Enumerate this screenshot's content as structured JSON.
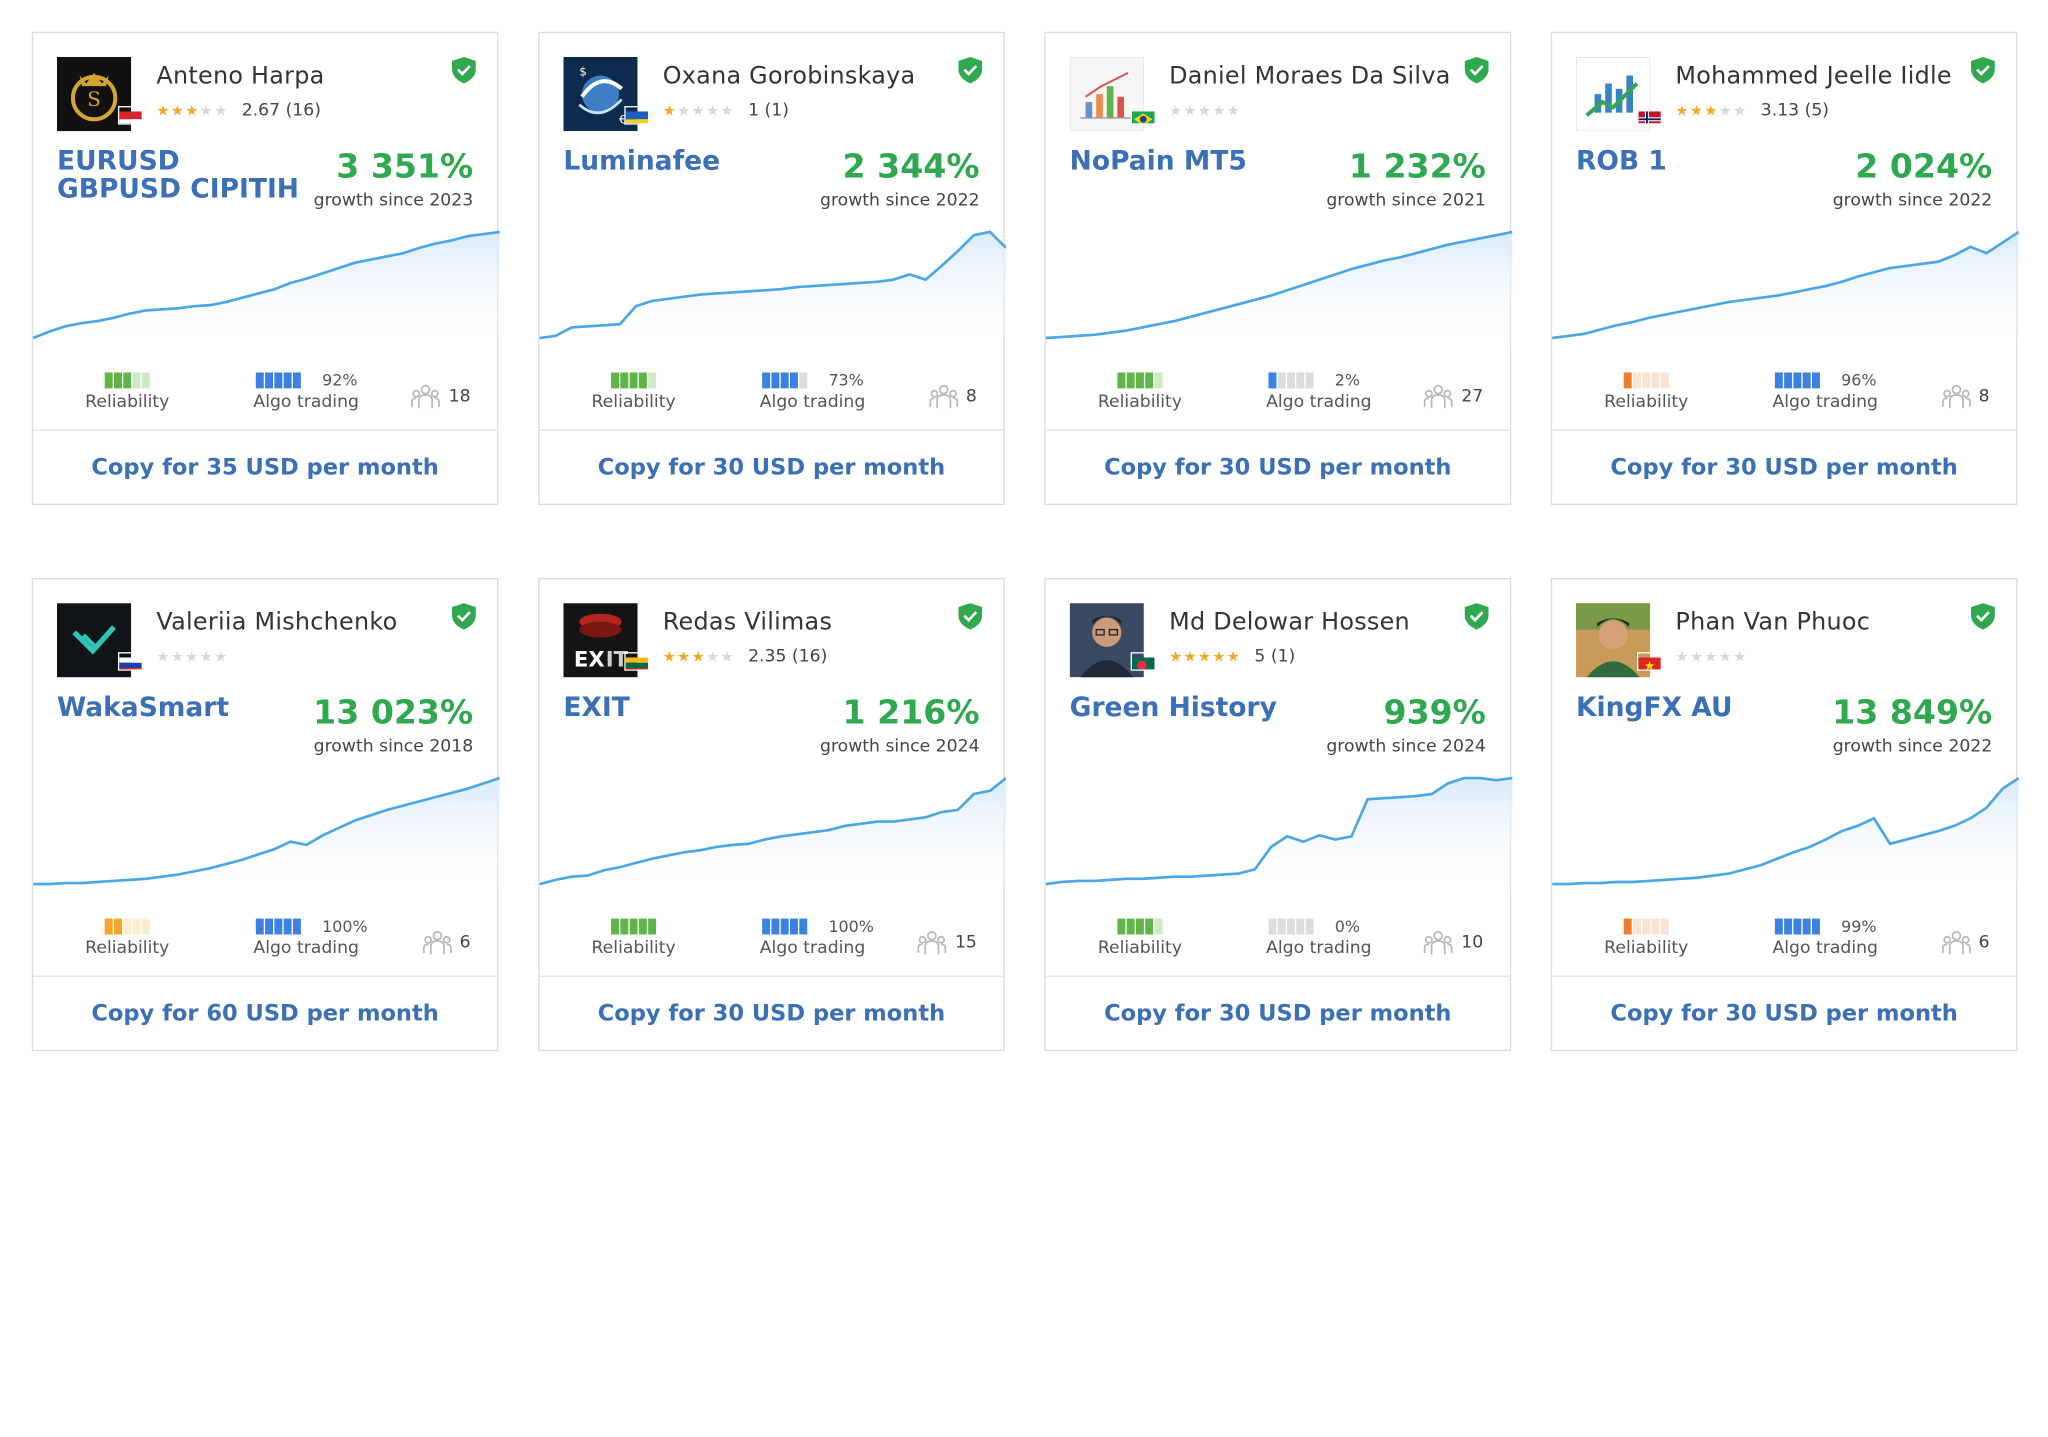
{
  "cards": [
    {
      "author": "Anteno Harpa",
      "stars": 2.5,
      "rating": "2.67 (16)",
      "strategy": "EURUSD GBPUSD CIPITIH",
      "growth": "3 351%",
      "since": "growth since 2023",
      "reliability": 3,
      "relColor": "green",
      "algo": "92%",
      "algoFill": 5,
      "subs": "18",
      "copy": "Copy for 35 USD per month",
      "flag": "id",
      "avatar": "gold-logo",
      "curve": [
        0.0,
        0.06,
        0.11,
        0.14,
        0.16,
        0.19,
        0.23,
        0.26,
        0.27,
        0.28,
        0.3,
        0.31,
        0.34,
        0.38,
        0.42,
        0.46,
        0.52,
        0.56,
        0.61,
        0.66,
        0.71,
        0.74,
        0.77,
        0.8,
        0.85,
        0.89,
        0.92,
        0.96,
        0.98,
        1.0
      ]
    },
    {
      "author": "Oxana Gorobinskaya",
      "stars": 1,
      "rating": "1 (1)",
      "strategy": "Luminafee",
      "growth": "2 344%",
      "since": "growth since 2022",
      "reliability": 4,
      "relColor": "green",
      "algo": "73%",
      "algoFill": 4,
      "subs": "8",
      "copy": "Copy for 30 USD per month",
      "flag": "ua",
      "avatar": "forex-globe",
      "curve": [
        0.0,
        0.02,
        0.1,
        0.11,
        0.12,
        0.13,
        0.3,
        0.35,
        0.37,
        0.39,
        0.41,
        0.42,
        0.43,
        0.44,
        0.45,
        0.46,
        0.48,
        0.49,
        0.5,
        0.51,
        0.52,
        0.53,
        0.55,
        0.6,
        0.55,
        0.68,
        0.82,
        0.97,
        1.0,
        0.85
      ]
    },
    {
      "author": "Daniel Moraes Da Silva",
      "stars": 0,
      "rating": "",
      "strategy": "NoPain MT5",
      "growth": "1 232%",
      "since": "growth since 2021",
      "reliability": 4,
      "relColor": "green",
      "algo": "2%",
      "algoFill": 1,
      "subs": "27",
      "copy": "Copy for 30 USD per month",
      "flag": "br",
      "avatar": "bar-icon",
      "curve": [
        0.0,
        0.01,
        0.02,
        0.03,
        0.05,
        0.07,
        0.1,
        0.13,
        0.16,
        0.2,
        0.24,
        0.28,
        0.32,
        0.36,
        0.4,
        0.45,
        0.5,
        0.55,
        0.6,
        0.65,
        0.69,
        0.73,
        0.76,
        0.8,
        0.84,
        0.88,
        0.91,
        0.94,
        0.97,
        1.0
      ]
    },
    {
      "author": "Mohammed Jeelle Iidle",
      "stars": 3,
      "rating": "3.13 (5)",
      "strategy": "ROB 1",
      "growth": "2 024%",
      "since": "growth since 2022",
      "reliability": 1,
      "relColor": "orange",
      "algo": "96%",
      "algoFill": 5,
      "subs": "8",
      "copy": "Copy for 30 USD per month",
      "flag": "no",
      "avatar": "chart-arrow",
      "curve": [
        0.0,
        0.02,
        0.04,
        0.08,
        0.12,
        0.15,
        0.19,
        0.22,
        0.25,
        0.28,
        0.31,
        0.34,
        0.36,
        0.38,
        0.4,
        0.43,
        0.46,
        0.49,
        0.53,
        0.58,
        0.62,
        0.66,
        0.68,
        0.7,
        0.72,
        0.78,
        0.86,
        0.8,
        0.9,
        1.0
      ]
    },
    {
      "author": "Valeriia Mishchenko",
      "stars": 0,
      "rating": "",
      "strategy": "WakaSmart",
      "growth": "13 023%",
      "since": "growth since 2018",
      "reliability": 2,
      "relColor": "amber",
      "algo": "100%",
      "algoFill": 5,
      "subs": "6",
      "copy": "Copy for 60 USD per month",
      "flag": "ru",
      "avatar": "waka-logo",
      "curve": [
        0.0,
        0.0,
        0.01,
        0.01,
        0.02,
        0.03,
        0.04,
        0.05,
        0.07,
        0.09,
        0.12,
        0.15,
        0.19,
        0.23,
        0.28,
        0.33,
        0.4,
        0.37,
        0.46,
        0.53,
        0.6,
        0.65,
        0.7,
        0.74,
        0.78,
        0.82,
        0.86,
        0.9,
        0.95,
        1.0
      ]
    },
    {
      "author": "Redas Vilimas",
      "stars": 2.5,
      "rating": "2.35 (16)",
      "strategy": "EXIT",
      "growth": "1 216%",
      "since": "growth since 2024",
      "reliability": 5,
      "relColor": "green",
      "algo": "100%",
      "algoFill": 5,
      "subs": "15",
      "copy": "Copy for 30 USD per month",
      "flag": "lt",
      "avatar": "exit-logo",
      "curve": [
        0.0,
        0.04,
        0.07,
        0.08,
        0.13,
        0.16,
        0.2,
        0.24,
        0.27,
        0.3,
        0.32,
        0.35,
        0.37,
        0.38,
        0.42,
        0.45,
        0.47,
        0.49,
        0.51,
        0.55,
        0.57,
        0.59,
        0.59,
        0.61,
        0.63,
        0.68,
        0.7,
        0.85,
        0.88,
        1.0
      ]
    },
    {
      "author": "Md Delowar Hossen",
      "stars": 5,
      "rating": "5 (1)",
      "strategy": "Green History",
      "growth": "939%",
      "since": "growth since 2024",
      "reliability": 4,
      "relColor": "green",
      "algo": "0%",
      "algoFill": 0,
      "subs": "10",
      "copy": "Copy for 30 USD per month",
      "flag": "bd",
      "avatar": "photo-man",
      "curve": [
        0.0,
        0.02,
        0.03,
        0.03,
        0.04,
        0.05,
        0.05,
        0.06,
        0.07,
        0.07,
        0.08,
        0.09,
        0.1,
        0.14,
        0.35,
        0.45,
        0.4,
        0.46,
        0.42,
        0.45,
        0.8,
        0.81,
        0.82,
        0.83,
        0.85,
        0.95,
        1.0,
        1.0,
        0.98,
        1.0
      ]
    },
    {
      "author": "Phan Van Phuoc",
      "stars": 0,
      "rating": "",
      "strategy": "KingFX AU",
      "growth": "13 849%",
      "since": "growth since 2022",
      "reliability": 1,
      "relColor": "orange",
      "algo": "99%",
      "algoFill": 5,
      "subs": "6",
      "copy": "Copy for 30 USD per month",
      "flag": "vn",
      "avatar": "photo-young",
      "curve": [
        0.0,
        0.0,
        0.01,
        0.01,
        0.02,
        0.02,
        0.03,
        0.04,
        0.05,
        0.06,
        0.08,
        0.1,
        0.14,
        0.18,
        0.24,
        0.3,
        0.35,
        0.42,
        0.5,
        0.55,
        0.62,
        0.38,
        0.42,
        0.46,
        0.5,
        0.55,
        0.62,
        0.72,
        0.9,
        1.0
      ]
    }
  ]
}
